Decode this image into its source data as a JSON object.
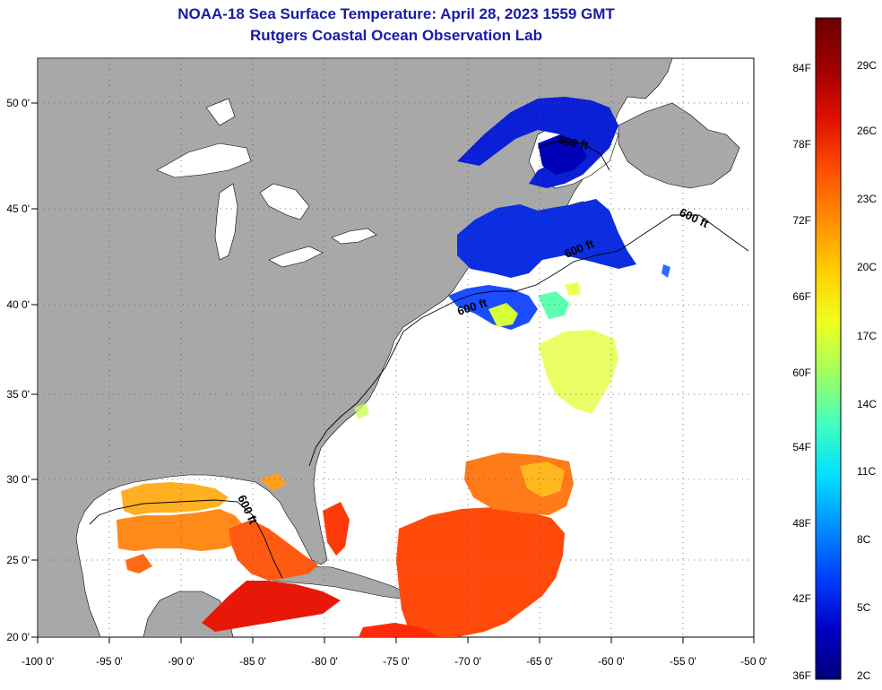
{
  "title_line1": "NOAA-18 Sea Surface Temperature:  April 28, 2023 1559 GMT",
  "title_line2": "Rutgers Coastal Ocean Observation Lab",
  "lon_labels": [
    "-100 0'",
    "-95 0'",
    "-90 0'",
    "-85 0'",
    "-80 0'",
    "-75 0'",
    "-70 0'",
    "-65 0'",
    "-60 0'",
    "-55 0'",
    "-50 0'"
  ],
  "lat_labels": [
    "50 0'",
    "45 0'",
    "40 0'",
    "35 0'",
    "30 0'",
    "25 0'",
    "20 0'"
  ],
  "contour_label": "600 ft",
  "colorbar": {
    "fahrenheit_labels": [
      "84F",
      "78F",
      "72F",
      "66F",
      "60F",
      "54F",
      "48F",
      "42F",
      "36F"
    ],
    "celsius_labels": [
      "29C",
      "26C",
      "23C",
      "20C",
      "17C",
      "14C",
      "11C",
      "8C",
      "5C",
      "2C"
    ],
    "colors": [
      "#00007a",
      "#0000c8",
      "#0040ff",
      "#0090ff",
      "#00e0ff",
      "#40ffc0",
      "#a0ff60",
      "#f0ff20",
      "#ffd000",
      "#ff9000",
      "#ff5000",
      "#e01000",
      "#a00000",
      "#6a0000"
    ]
  },
  "colors": {
    "land": "#a8a8a8",
    "ocean_nodata": "#ffffff",
    "title": "#1a1aa8"
  }
}
